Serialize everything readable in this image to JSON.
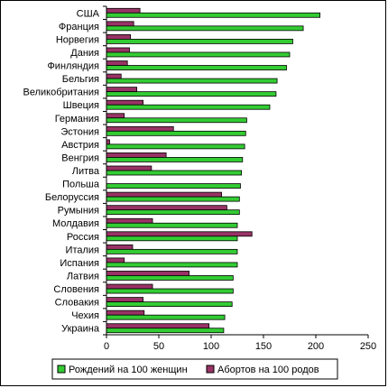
{
  "chart_data": {
    "type": "bar",
    "orientation": "horizontal",
    "categories": [
      "США",
      "Франция",
      "Норвегия",
      "Дания",
      "Финляндия",
      "Бельгия",
      "Великобритания",
      "Швеция",
      "Германия",
      "Эстония",
      "Австрия",
      "Венгрия",
      "Литва",
      "Польша",
      "Белоруссия",
      "Румыния",
      "Молдавия",
      "Россия",
      "Италия",
      "Испания",
      "Латвия",
      "Словения",
      "Словакия",
      "Чехия",
      "Украина"
    ],
    "series": [
      {
        "name": "Рождений на 100 женщин",
        "color": "#33cc33",
        "values": [
          204,
          188,
          178,
          175,
          172,
          163,
          162,
          156,
          134,
          133,
          132,
          130,
          129,
          128,
          127,
          127,
          125,
          125,
          125,
          125,
          121,
          121,
          120,
          113,
          112
        ]
      },
      {
        "name": "Абортов на 100 родов",
        "color": "#993366",
        "values": [
          32,
          26,
          23,
          22,
          20,
          14,
          29,
          35,
          17,
          64,
          3,
          57,
          43,
          0,
          110,
          115,
          44,
          139,
          25,
          17,
          79,
          44,
          35,
          36,
          98
        ]
      }
    ],
    "xlim": [
      0,
      250
    ],
    "xticks": [
      "0",
      "50",
      "100",
      "150",
      "200",
      "250"
    ],
    "grid": false,
    "legend_position": "bottom"
  }
}
